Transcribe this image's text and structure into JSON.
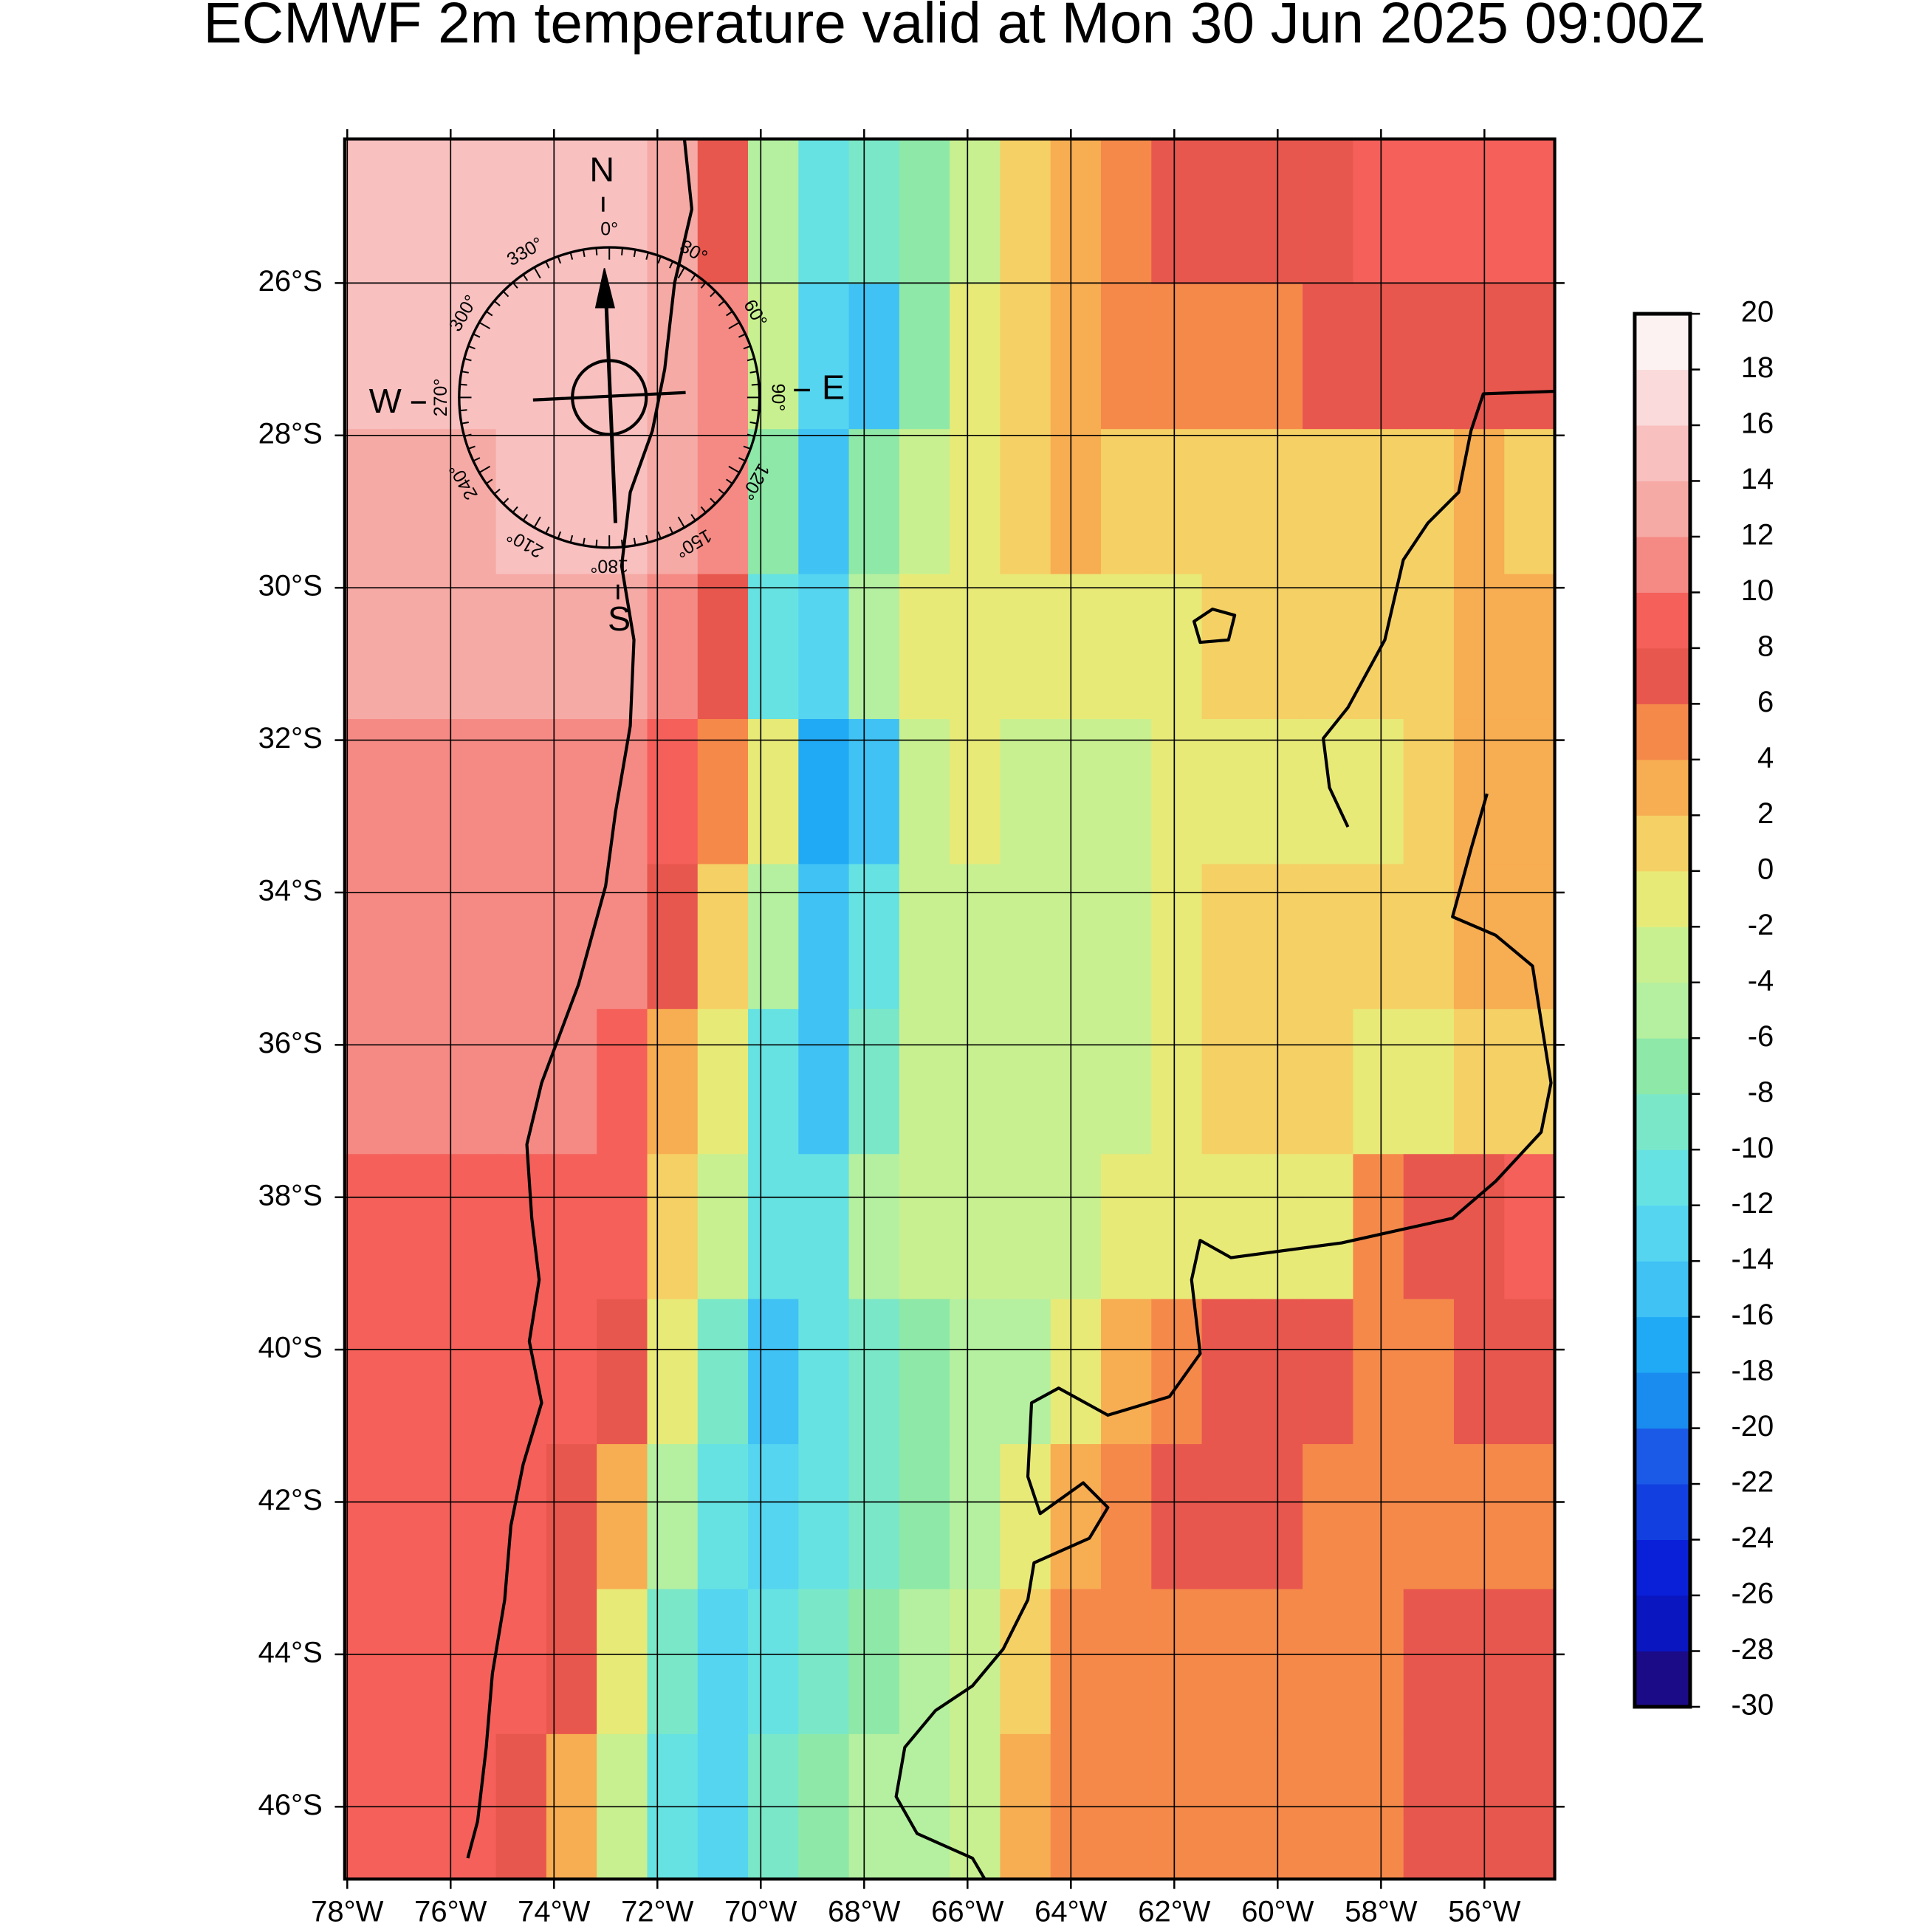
{
  "chart_data": {
    "type": "map",
    "title": "ECMWF 2m temperature valid at Mon 30 Jun 2025 09:00Z",
    "xlim": [
      -78.05,
      -54.64
    ],
    "ylim": [
      -46.95,
      -24.11
    ],
    "xticks": [
      {
        "value": -78,
        "label": "78°W"
      },
      {
        "value": -76,
        "label": "76°W"
      },
      {
        "value": -74,
        "label": "74°W"
      },
      {
        "value": -72,
        "label": "72°W"
      },
      {
        "value": -70,
        "label": "70°W"
      },
      {
        "value": -68,
        "label": "68°W"
      },
      {
        "value": -66,
        "label": "66°W"
      },
      {
        "value": -64,
        "label": "64°W"
      },
      {
        "value": -62,
        "label": "62°W"
      },
      {
        "value": -60,
        "label": "60°W"
      },
      {
        "value": -58,
        "label": "58°W"
      },
      {
        "value": -56,
        "label": "56°W"
      }
    ],
    "yticks": [
      {
        "value": -26,
        "label": "26°S"
      },
      {
        "value": -28,
        "label": "28°S"
      },
      {
        "value": -30,
        "label": "30°S"
      },
      {
        "value": -32,
        "label": "32°S"
      },
      {
        "value": -34,
        "label": "34°S"
      },
      {
        "value": -36,
        "label": "36°S"
      },
      {
        "value": -38,
        "label": "38°S"
      },
      {
        "value": -40,
        "label": "40°S"
      },
      {
        "value": -42,
        "label": "42°S"
      },
      {
        "value": -44,
        "label": "44°S"
      },
      {
        "value": -46,
        "label": "46°S"
      }
    ],
    "field": [
      [
        15,
        15,
        15,
        15,
        15,
        15,
        13,
        6,
        -6,
        -12,
        -10,
        -8,
        -3,
        0,
        2,
        4,
        7,
        7,
        7,
        7,
        8,
        8,
        8,
        8
      ],
      [
        15,
        15,
        15,
        15,
        15,
        15,
        13,
        10,
        -4,
        -14,
        -16,
        -8,
        -2,
        0,
        3,
        4,
        5,
        5,
        5,
        6,
        6,
        7,
        7,
        7
      ],
      [
        13,
        13,
        13,
        15,
        15,
        15,
        13,
        10,
        -8,
        -16,
        -8,
        -4,
        -1,
        1,
        2,
        1,
        0,
        0,
        1,
        1,
        1,
        1,
        2,
        1
      ],
      [
        13,
        13,
        13,
        13,
        13,
        13,
        11,
        6,
        -12,
        -14,
        -6,
        -2,
        -2,
        -1,
        -1,
        -2,
        -1,
        0,
        0,
        1,
        1,
        1,
        2,
        2
      ],
      [
        11,
        11,
        11,
        11,
        11,
        11,
        9,
        4,
        -2,
        -18,
        -16,
        -4,
        -2,
        -3,
        -3,
        -3,
        -2,
        -2,
        -2,
        -1,
        -1,
        1,
        2,
        3
      ],
      [
        11,
        11,
        11,
        11,
        11,
        10,
        7,
        0,
        -6,
        -16,
        -12,
        -4,
        -3,
        -4,
        -3,
        -3,
        -2,
        0,
        1,
        1,
        0,
        1,
        2,
        3
      ],
      [
        11,
        11,
        11,
        11,
        10,
        9,
        2,
        -2,
        -12,
        -16,
        -10,
        -4,
        -4,
        -4,
        -4,
        -3,
        -1,
        1,
        1,
        0,
        -1,
        -1,
        0,
        1
      ],
      [
        9,
        9,
        9,
        9,
        9,
        9,
        1,
        -4,
        -12,
        -12,
        -6,
        -4,
        -4,
        -4,
        -4,
        -2,
        -1,
        -1,
        -1,
        -1,
        5,
        7,
        7,
        9
      ],
      [
        9,
        9,
        9,
        9,
        8,
        7,
        -2,
        -10,
        -16,
        -12,
        -10,
        -8,
        -6,
        -6,
        -2,
        3,
        5,
        6,
        7,
        6,
        5,
        5,
        6,
        7
      ],
      [
        9,
        9,
        9,
        9,
        7,
        3,
        -6,
        -12,
        -14,
        -12,
        -10,
        -8,
        -6,
        -2,
        3,
        5,
        6,
        7,
        7,
        5,
        5,
        5,
        5,
        5
      ],
      [
        9,
        9,
        9,
        9,
        6,
        -2,
        -10,
        -14,
        -12,
        -10,
        -8,
        -6,
        -4,
        1,
        5,
        5,
        5,
        5,
        5,
        5,
        5,
        7,
        7,
        7
      ],
      [
        9,
        9,
        9,
        7,
        3,
        -4,
        -12,
        -14,
        -10,
        -8,
        -6,
        -6,
        -4,
        3,
        5,
        5,
        5,
        5,
        5,
        5,
        5,
        6,
        7,
        7
      ]
    ],
    "colorbar": {
      "ticks": [
        -30,
        -28,
        -26,
        -24,
        -22,
        -20,
        -18,
        -16,
        -14,
        -12,
        -10,
        -8,
        -6,
        -4,
        -2,
        0,
        2,
        4,
        6,
        8,
        10,
        12,
        14,
        16,
        18,
        20
      ],
      "colors": [
        "#1c0b86",
        "#0a16c0",
        "#0a20d8",
        "#1240e0",
        "#1a5ae6",
        "#1a8cf0",
        "#20aaf5",
        "#40c2f5",
        "#55d5f0",
        "#66e2e2",
        "#7ae8c8",
        "#8ee8a8",
        "#b4f0a0",
        "#c8f090",
        "#e8ea78",
        "#f5d065",
        "#f7ad52",
        "#f5894a",
        "#e8574e",
        "#f5605a",
        "#f58a85",
        "#f6aaa5",
        "#f8c0bf",
        "#fadada",
        "#fdf2f2"
      ]
    },
    "compass": {
      "north": "N",
      "east": "E",
      "south": "S",
      "west": "W",
      "degrees": [
        "0°",
        "30°",
        "60°",
        "90°",
        "120°",
        "150°",
        "180°",
        "210°",
        "240°",
        "270°",
        "300°",
        "330°"
      ]
    }
  }
}
